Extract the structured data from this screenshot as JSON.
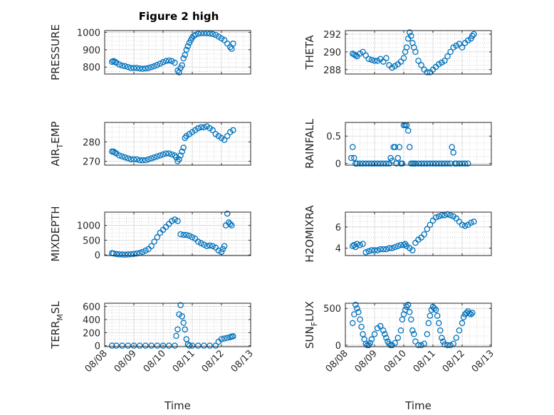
{
  "colors": {
    "marker": "#0072BD",
    "axis": "#262626",
    "grid": "#cccccc"
  },
  "figure": {
    "title": "Figure 2 high"
  },
  "chart_data": [
    {
      "type": "scatter",
      "ylabel": "PRESSURE",
      "title": "Figure 2 high",
      "xlim": [
        0,
        5
      ],
      "ylim": [
        760,
        1010
      ],
      "yticks": [
        {
          "v": 800,
          "label": "800"
        },
        {
          "v": 900,
          "label": "900"
        },
        {
          "v": 1000,
          "label": "1000"
        }
      ],
      "x": [
        0.25,
        0.3,
        0.35,
        0.4,
        0.5,
        0.6,
        0.7,
        0.8,
        0.9,
        1.0,
        1.1,
        1.2,
        1.3,
        1.4,
        1.5,
        1.6,
        1.7,
        1.8,
        1.9,
        2.0,
        2.1,
        2.2,
        2.3,
        2.4,
        2.5,
        2.55,
        2.6,
        2.65,
        2.7,
        2.75,
        2.8,
        2.85,
        2.9,
        2.95,
        3.0,
        3.05,
        3.1,
        3.2,
        3.3,
        3.4,
        3.5,
        3.6,
        3.7,
        3.8,
        3.9,
        4.0,
        4.1,
        4.2,
        4.3,
        4.35,
        4.4
      ],
      "y": [
        830,
        835,
        830,
        825,
        815,
        808,
        805,
        800,
        795,
        795,
        795,
        792,
        790,
        792,
        795,
        800,
        805,
        812,
        820,
        828,
        835,
        838,
        835,
        825,
        780,
        770,
        795,
        810,
        850,
        870,
        900,
        920,
        940,
        955,
        970,
        980,
        985,
        992,
        995,
        995,
        995,
        993,
        990,
        985,
        975,
        965,
        955,
        935,
        915,
        905,
        935
      ]
    },
    {
      "type": "scatter",
      "ylabel": "AIR_TEMP",
      "ylabel_main": "AIR",
      "ylabel_sub": "T",
      "ylabel_rest": "EMP",
      "xlim": [
        0,
        5
      ],
      "ylim": [
        268,
        290
      ],
      "yticks": [
        {
          "v": 270,
          "label": "270"
        },
        {
          "v": 280,
          "label": "280"
        }
      ],
      "x": [
        0.25,
        0.3,
        0.35,
        0.4,
        0.5,
        0.6,
        0.7,
        0.8,
        0.9,
        1.0,
        1.1,
        1.2,
        1.3,
        1.4,
        1.5,
        1.6,
        1.7,
        1.8,
        1.9,
        2.0,
        2.1,
        2.2,
        2.3,
        2.4,
        2.45,
        2.5,
        2.55,
        2.6,
        2.65,
        2.7,
        2.75,
        2.8,
        2.9,
        3.0,
        3.1,
        3.2,
        3.3,
        3.4,
        3.5,
        3.6,
        3.7,
        3.8,
        3.9,
        4.0,
        4.1,
        4.2,
        4.3,
        4.4
      ],
      "y": [
        275,
        275,
        274.5,
        274,
        273,
        272.5,
        272,
        271.5,
        271,
        271,
        271,
        270.5,
        270.5,
        270.5,
        271,
        271.5,
        272,
        272.5,
        273,
        273.5,
        274,
        274,
        273.5,
        273,
        272,
        270,
        271,
        273,
        275,
        277,
        282,
        283,
        284,
        285,
        286,
        287,
        287.5,
        287.5,
        288,
        287,
        286,
        284,
        283,
        282,
        281,
        283,
        285,
        286
      ]
    },
    {
      "type": "scatter",
      "ylabel": "MIXDEPTH",
      "xlim": [
        0,
        5
      ],
      "ylim": [
        -20,
        1450
      ],
      "yticks": [
        {
          "v": 0,
          "label": "0"
        },
        {
          "v": 500,
          "label": "500"
        },
        {
          "v": 1000,
          "label": "1000"
        }
      ],
      "x": [
        0.25,
        0.3,
        0.4,
        0.5,
        0.6,
        0.7,
        0.8,
        0.9,
        1.0,
        1.1,
        1.2,
        1.3,
        1.4,
        1.5,
        1.6,
        1.7,
        1.8,
        1.9,
        2.0,
        2.1,
        2.2,
        2.3,
        2.4,
        2.5,
        2.6,
        2.7,
        2.8,
        2.9,
        3.0,
        3.1,
        3.2,
        3.3,
        3.4,
        3.5,
        3.6,
        3.7,
        3.8,
        3.9,
        4.0,
        4.05,
        4.1,
        4.15,
        4.2,
        4.25,
        4.3,
        4.35
      ],
      "y": [
        60,
        50,
        30,
        20,
        15,
        10,
        15,
        25,
        35,
        50,
        70,
        100,
        150,
        200,
        300,
        450,
        600,
        750,
        850,
        950,
        1050,
        1150,
        1200,
        1150,
        700,
        680,
        680,
        650,
        600,
        550,
        450,
        400,
        350,
        300,
        320,
        300,
        250,
        150,
        100,
        200,
        300,
        1000,
        1400,
        1100,
        1050,
        1000
      ]
    },
    {
      "type": "scatter",
      "ylabel": "TERR_MSL",
      "ylabel_main": "TERR",
      "ylabel_sub": "M",
      "ylabel_rest": "SL",
      "xlim": [
        0,
        5
      ],
      "ylim": [
        -15,
        650
      ],
      "yticks": [
        {
          "v": 0,
          "label": "0"
        },
        {
          "v": 200,
          "label": "200"
        },
        {
          "v": 400,
          "label": "400"
        },
        {
          "v": 600,
          "label": "600"
        }
      ],
      "x": [
        0.25,
        0.4,
        0.6,
        0.8,
        1.0,
        1.2,
        1.4,
        1.6,
        1.8,
        2.0,
        2.2,
        2.4,
        2.45,
        2.5,
        2.55,
        2.6,
        2.65,
        2.7,
        2.75,
        2.8,
        2.85,
        2.9,
        3.0,
        3.2,
        3.4,
        3.6,
        3.8,
        3.9,
        4.0,
        4.1,
        4.2,
        4.3,
        4.35,
        4.4
      ],
      "y": [
        0,
        0,
        0,
        0,
        0,
        0,
        0,
        0,
        0,
        0,
        0,
        0,
        150,
        250,
        480,
        620,
        450,
        350,
        250,
        100,
        20,
        0,
        0,
        0,
        0,
        0,
        0,
        60,
        100,
        110,
        120,
        130,
        140,
        145
      ]
    },
    {
      "type": "scatter",
      "ylabel": "THETA",
      "xlim": [
        0,
        5
      ],
      "ylim": [
        287.5,
        292.4
      ],
      "yticks": [
        {
          "v": 288,
          "label": "288"
        },
        {
          "v": 290,
          "label": "290"
        },
        {
          "v": 292,
          "label": "292"
        }
      ],
      "x": [
        0.25,
        0.3,
        0.35,
        0.4,
        0.5,
        0.6,
        0.7,
        0.8,
        0.9,
        1.0,
        1.1,
        1.2,
        1.3,
        1.4,
        1.5,
        1.6,
        1.7,
        1.8,
        1.9,
        2.0,
        2.05,
        2.1,
        2.15,
        2.2,
        2.25,
        2.3,
        2.35,
        2.4,
        2.5,
        2.6,
        2.7,
        2.8,
        2.9,
        3.0,
        3.1,
        3.2,
        3.3,
        3.4,
        3.5,
        3.6,
        3.7,
        3.8,
        3.9,
        4.0,
        4.1,
        4.2,
        4.3,
        4.35,
        4.4
      ],
      "y": [
        289.8,
        289.7,
        289.6,
        289.5,
        289.8,
        290.0,
        289.6,
        289.2,
        289.1,
        289.0,
        289.0,
        289.2,
        288.9,
        289.3,
        288.5,
        288.2,
        288.4,
        288.6,
        288.9,
        289.3,
        290.0,
        290.5,
        291.5,
        292.2,
        291.8,
        291.0,
        290.5,
        290.0,
        289.0,
        288.5,
        288.0,
        287.7,
        287.7,
        288.0,
        288.3,
        288.6,
        288.8,
        289.0,
        289.5,
        290.0,
        290.5,
        290.7,
        290.9,
        290.5,
        291.0,
        291.3,
        291.5,
        291.8,
        292.0
      ]
    },
    {
      "type": "scatter",
      "ylabel": "RAINFALL",
      "xlim": [
        0,
        5
      ],
      "ylim": [
        -0.03,
        0.75
      ],
      "yticks": [
        {
          "v": 0,
          "label": "0"
        },
        {
          "v": 0.5,
          "label": "0.5"
        }
      ],
      "x": [
        0.2,
        0.25,
        0.3,
        0.35,
        0.4,
        0.5,
        0.6,
        0.7,
        0.8,
        0.9,
        1.0,
        1.1,
        1.2,
        1.3,
        1.4,
        1.5,
        1.55,
        1.6,
        1.65,
        1.7,
        1.75,
        1.8,
        1.85,
        1.9,
        1.95,
        2.0,
        2.05,
        2.1,
        2.15,
        2.2,
        2.25,
        2.3,
        2.35,
        2.4,
        2.5,
        2.6,
        2.7,
        2.8,
        2.9,
        3.0,
        3.1,
        3.2,
        3.3,
        3.4,
        3.5,
        3.6,
        3.65,
        3.7,
        3.75,
        3.8,
        3.9,
        4.0,
        4.1,
        4.2
      ],
      "y": [
        0.1,
        0.3,
        0.1,
        0,
        0,
        0,
        0,
        0,
        0,
        0,
        0,
        0,
        0,
        0,
        0,
        0,
        0.1,
        0.05,
        0.3,
        0.3,
        0,
        0.1,
        0.3,
        0,
        0,
        0.7,
        0.7,
        0.7,
        0.6,
        0.3,
        0,
        0,
        0,
        0,
        0,
        0,
        0,
        0,
        0,
        0,
        0,
        0,
        0,
        0,
        0,
        0,
        0.3,
        0.2,
        0,
        0,
        0,
        0,
        0,
        0
      ]
    },
    {
      "type": "scatter",
      "ylabel": "H2OMIXRA",
      "xlim": [
        0,
        5
      ],
      "ylim": [
        3.3,
        7.4
      ],
      "yticks": [
        {
          "v": 4,
          "label": "4"
        },
        {
          "v": 6,
          "label": "6"
        }
      ],
      "x": [
        0.25,
        0.3,
        0.35,
        0.4,
        0.5,
        0.6,
        0.7,
        0.8,
        0.9,
        1.0,
        1.1,
        1.2,
        1.3,
        1.4,
        1.5,
        1.6,
        1.7,
        1.8,
        1.9,
        2.0,
        2.05,
        2.1,
        2.2,
        2.3,
        2.4,
        2.5,
        2.6,
        2.7,
        2.8,
        2.9,
        3.0,
        3.1,
        3.2,
        3.3,
        3.4,
        3.5,
        3.6,
        3.7,
        3.8,
        3.9,
        4.0,
        4.1,
        4.2,
        4.3,
        4.4
      ],
      "y": [
        4.2,
        4.3,
        4.1,
        4.4,
        4.3,
        4.4,
        3.6,
        3.7,
        3.8,
        3.8,
        3.8,
        3.9,
        3.9,
        3.9,
        4.0,
        4.0,
        4.1,
        4.2,
        4.3,
        4.3,
        4.4,
        4.2,
        4.0,
        3.8,
        4.5,
        4.8,
        5.0,
        5.3,
        5.8,
        6.2,
        6.6,
        6.9,
        7.0,
        7.1,
        7.1,
        7.2,
        7.1,
        7.0,
        6.8,
        6.5,
        6.2,
        6.1,
        6.2,
        6.4,
        6.5
      ]
    },
    {
      "type": "scatter",
      "ylabel": "SUN_FLUX",
      "ylabel_main": "SUN",
      "ylabel_sub": "F",
      "ylabel_rest": "LUX",
      "xlim": [
        0,
        5
      ],
      "ylim": [
        -20,
        570
      ],
      "yticks": [
        {
          "v": 0,
          "label": "0"
        },
        {
          "v": 500,
          "label": "500"
        }
      ],
      "x": [
        0.25,
        0.3,
        0.35,
        0.4,
        0.45,
        0.5,
        0.55,
        0.6,
        0.65,
        0.7,
        0.75,
        0.8,
        0.85,
        0.9,
        1.0,
        1.1,
        1.2,
        1.3,
        1.35,
        1.4,
        1.45,
        1.5,
        1.55,
        1.6,
        1.7,
        1.8,
        1.9,
        1.95,
        2.0,
        2.05,
        2.1,
        2.15,
        2.2,
        2.25,
        2.3,
        2.35,
        2.4,
        2.5,
        2.6,
        2.7,
        2.8,
        2.85,
        2.9,
        2.95,
        3.0,
        3.05,
        3.1,
        3.15,
        3.2,
        3.25,
        3.3,
        3.35,
        3.4,
        3.5,
        3.6,
        3.7,
        3.8,
        3.9,
        4.0,
        4.05,
        4.1,
        4.15,
        4.2,
        4.25,
        4.3,
        4.35
      ],
      "y": [
        300,
        420,
        550,
        500,
        450,
        350,
        250,
        150,
        80,
        20,
        0,
        0,
        30,
        80,
        150,
        230,
        260,
        200,
        150,
        100,
        50,
        20,
        0,
        0,
        30,
        100,
        200,
        350,
        420,
        480,
        520,
        550,
        450,
        350,
        200,
        150,
        50,
        0,
        0,
        20,
        150,
        300,
        400,
        480,
        520,
        500,
        480,
        400,
        300,
        200,
        100,
        50,
        10,
        0,
        0,
        20,
        100,
        200,
        300,
        380,
        420,
        440,
        460,
        430,
        420,
        440
      ]
    }
  ],
  "xaxis": {
    "label": "Time",
    "ticks": [
      {
        "v": 0,
        "label": "08/08"
      },
      {
        "v": 1,
        "label": "08/09"
      },
      {
        "v": 2,
        "label": "08/10"
      },
      {
        "v": 3,
        "label": "08/11"
      },
      {
        "v": 4,
        "label": "08/12"
      },
      {
        "v": 5,
        "label": "08/13"
      }
    ]
  }
}
